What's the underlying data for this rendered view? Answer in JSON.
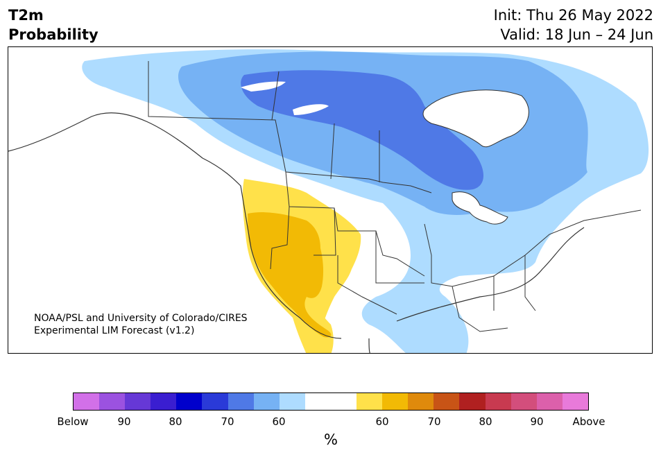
{
  "title": {
    "line1": "T2m",
    "line2": "Probability"
  },
  "info": {
    "init": "Init: Thu 26 May 2022",
    "valid": "Valid: 18 Jun – 24 Jun"
  },
  "credit": {
    "line1": "NOAA/PSL and University of Colorado/CIRES",
    "line2": "Experimental LIM Forecast (v1.2)"
  },
  "colors": {
    "land_fill": "#ffffff",
    "border_line": "#333333",
    "below_60": "#aedcff",
    "below_70": "#76b2f4",
    "below_80": "#4f79e6",
    "above_60": "#ffe14a",
    "above_70": "#f2ba05"
  },
  "colorbar": {
    "colors": [
      "#d270e8",
      "#9b52e0",
      "#6638d6",
      "#3a1ed0",
      "#0000cc",
      "#2a3ad8",
      "#4f79e6",
      "#76b2f4",
      "#aedcff",
      "#ffffff",
      "#ffffff",
      "#ffe14a",
      "#f2ba05",
      "#df8a0c",
      "#c85416",
      "#b02020",
      "#c83a50",
      "#d34e7c",
      "#dc60ab",
      "#e87ada"
    ],
    "tick_labels": [
      "Below",
      "90",
      "80",
      "70",
      "60",
      "60",
      "70",
      "80",
      "90",
      "Above"
    ],
    "unit": "%"
  }
}
